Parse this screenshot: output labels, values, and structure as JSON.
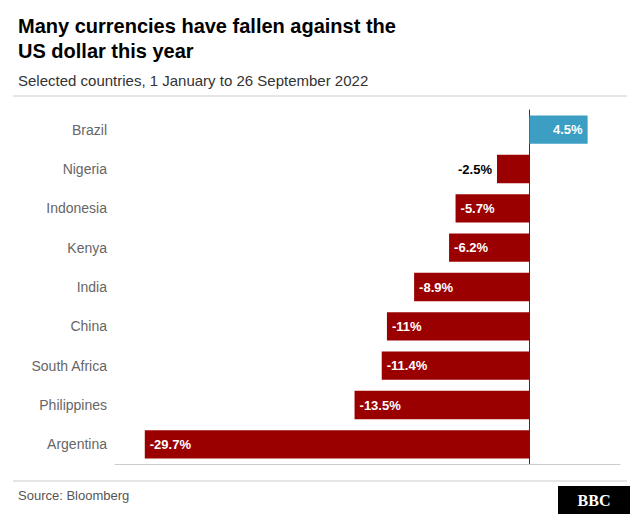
{
  "chart_data": {
    "type": "bar",
    "orientation": "horizontal",
    "title": "Many currencies have fallen against the\nUS dollar this year",
    "subtitle": "Selected countries, 1 January to 26 September 2022",
    "source": "Source: Bloomberg",
    "annotations": [
      "BBC"
    ],
    "categories": [
      "Brazil",
      "Nigeria",
      "Indonesia",
      "Kenya",
      "India",
      "China",
      "South Africa",
      "Philippines",
      "Argentina"
    ],
    "values": [
      4.5,
      -2.5,
      -5.7,
      -6.2,
      -8.9,
      -11.0,
      -11.4,
      -13.5,
      -29.7
    ],
    "value_labels": [
      "4.5%",
      "-2.5%",
      "-5.7%",
      "-6.2%",
      "-8.9%",
      "-11%",
      "-11.4%",
      "-13.5%",
      "-29.7%"
    ],
    "colors": [
      "#3b9ec2",
      "#9b0000",
      "#9b0000",
      "#9b0000",
      "#9b0000",
      "#9b0000",
      "#9b0000",
      "#9b0000",
      "#9b0000"
    ],
    "xlim": [
      -32,
      7
    ],
    "data_labels": true,
    "tick_labels": "y",
    "grid": false
  }
}
